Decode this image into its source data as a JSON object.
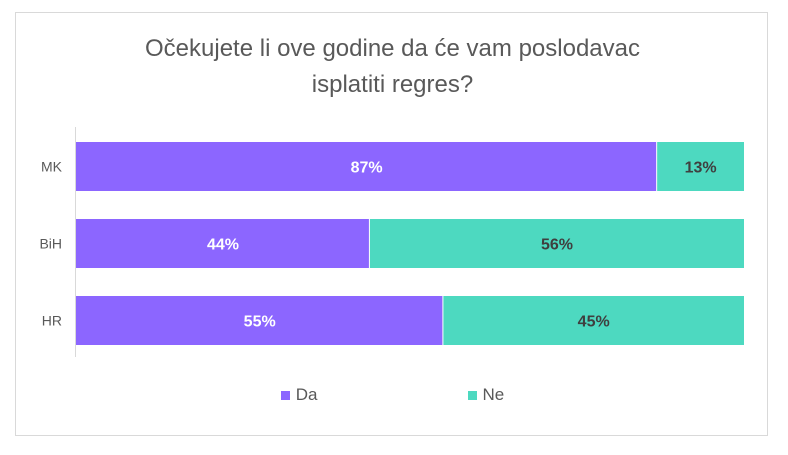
{
  "chart_data": {
    "type": "bar",
    "orientation": "horizontal",
    "stacked": true,
    "title_line1": "Očekujete li ove godine da će vam poslodavac",
    "title_line2": "isplatiti regres?",
    "categories": [
      "MK",
      "BiH",
      "HR"
    ],
    "series": [
      {
        "name": "Da",
        "color": "#8c66ff",
        "values": [
          87,
          44,
          55
        ],
        "labels": [
          "87%",
          "44%",
          "55%"
        ]
      },
      {
        "name": "Ne",
        "color": "#4dd9c0",
        "values": [
          13,
          56,
          45
        ],
        "labels": [
          "13%",
          "56%",
          "45%"
        ]
      }
    ],
    "xlim": [
      0,
      100
    ],
    "grid": false,
    "legend": "bottom"
  }
}
